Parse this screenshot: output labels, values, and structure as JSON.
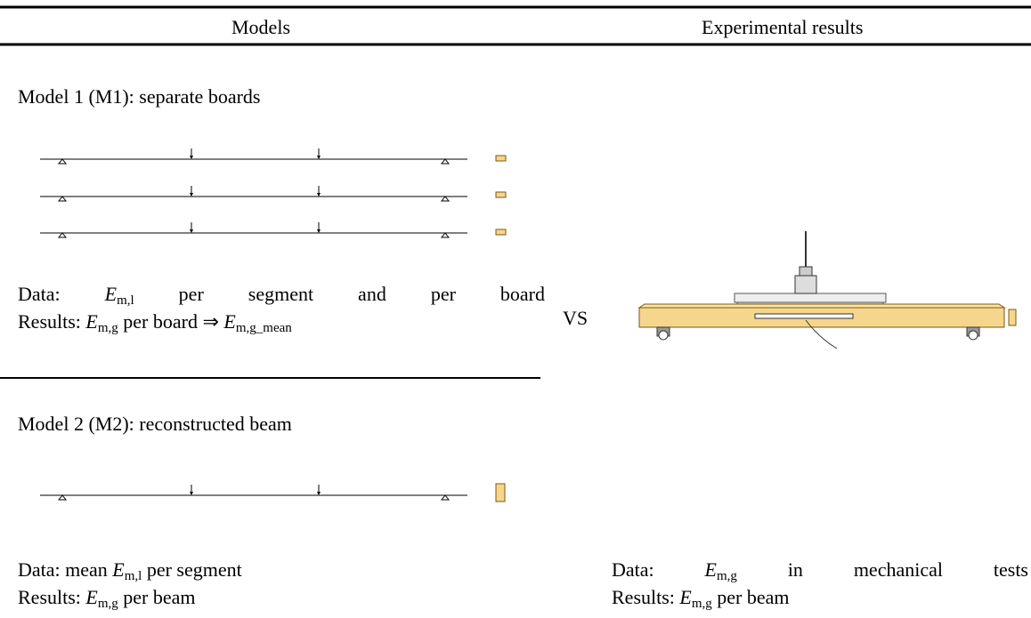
{
  "header": {
    "left": "Models",
    "right": "Experimental results"
  },
  "model1": {
    "title": "Model 1 (M1): separate boards",
    "data_line": [
      "Data: ",
      "E",
      "m,l",
      " per segment and per board"
    ],
    "results_line": [
      "Results: ",
      "E",
      "m,g",
      " per board ⇒ ",
      "E",
      "m,g_mean"
    ]
  },
  "versus": "VS",
  "model2": {
    "title": "Model 2 (M2): reconstructed beam",
    "data_line": [
      "Data: mean ",
      "E",
      "m,l",
      " per segment"
    ],
    "results_line": [
      "Results: ",
      "E",
      "m,g",
      " per beam"
    ]
  },
  "experimental": {
    "data_line": [
      "Data: ",
      "E",
      "m,g",
      " in mechanical tests"
    ],
    "results_line": [
      "Results: ",
      "E",
      "m,g",
      " per beam"
    ]
  }
}
